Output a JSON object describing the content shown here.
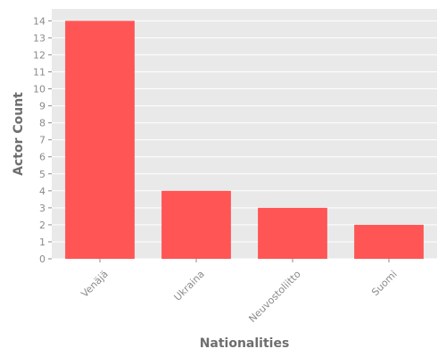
{
  "chart_data": {
    "type": "bar",
    "categories": [
      "Venäjä",
      "Ukraina",
      "Neuvostoliitto",
      "Suomi"
    ],
    "values": [
      14,
      4,
      3,
      2
    ],
    "title": "",
    "xlabel": "Nationalities",
    "ylabel": "Actor Count",
    "ylim": [
      0,
      14.7
    ],
    "yticks": [
      0,
      1,
      2,
      3,
      4,
      5,
      6,
      7,
      8,
      9,
      10,
      11,
      12,
      13,
      14
    ],
    "grid": true,
    "legend": "none",
    "colors": {
      "bar": "#ff5555",
      "plot_background": "#e9e9e9",
      "grid": "#ffffff",
      "tick_text": "#8a8a8a",
      "label_text": "#6e6e6e"
    }
  }
}
